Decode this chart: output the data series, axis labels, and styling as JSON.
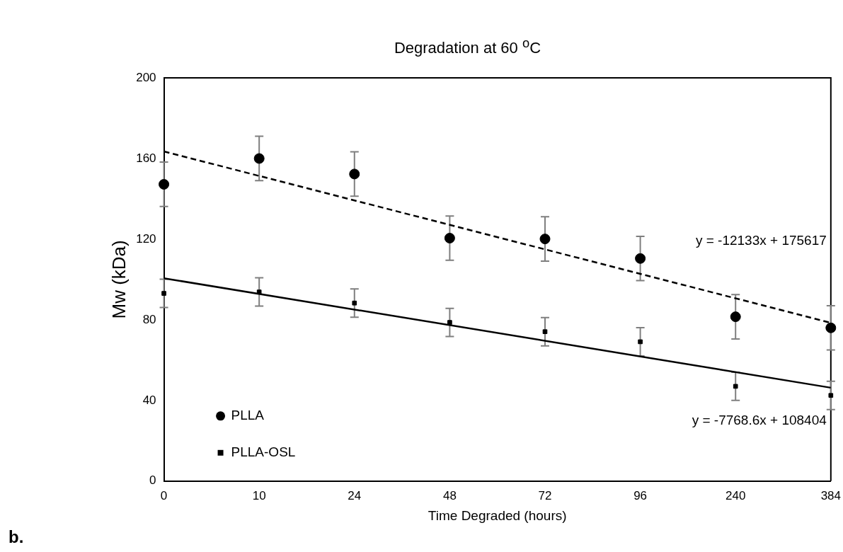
{
  "chart_data": {
    "type": "scatter",
    "title": "Degradation at 60 $^{o}$C",
    "xlabel": "Time Degraded (hours)",
    "ylabel": "Mw (kDa)",
    "categories": [
      "0",
      "10",
      "24",
      "48",
      "72",
      "96",
      "240",
      "384"
    ],
    "series": [
      {
        "name": "PLLA",
        "color": "#000000",
        "marker": "circle",
        "values": [
          147.2,
          160,
          152.3,
          120.5,
          120.1,
          110.4,
          81.5,
          76
        ],
        "errors": [
          11,
          11,
          11,
          11,
          11,
          11,
          11,
          11
        ]
      },
      {
        "name": "PLLA-OSL",
        "color": "#000000",
        "marker": "square",
        "values": [
          93.1,
          93.8,
          88.3,
          78.7,
          74.1,
          69.1,
          47,
          42.5
        ],
        "errors": [
          7,
          7,
          7,
          7,
          7,
          7,
          7,
          7
        ]
      },
      {
        "type": "line",
        "color": "#000000",
        "line_style": "dashed",
        "x": [
          "0",
          "384"
        ],
        "values": [
          163.5,
          78.5
        ]
      },
      {
        "type": "line",
        "color": "#000000",
        "line_style": "solid",
        "x": [
          "0",
          "384"
        ],
        "values": [
          100.6,
          46.3
        ]
      }
    ],
    "ylim": [
      0,
      200
    ],
    "yticks": [
      0,
      40,
      80,
      120,
      160,
      200
    ],
    "grid": false,
    "legend": "bottom left",
    "annotations": [
      "y = -12133x + 175617",
      "y = -7768.6x + 108404",
      "b."
    ]
  }
}
